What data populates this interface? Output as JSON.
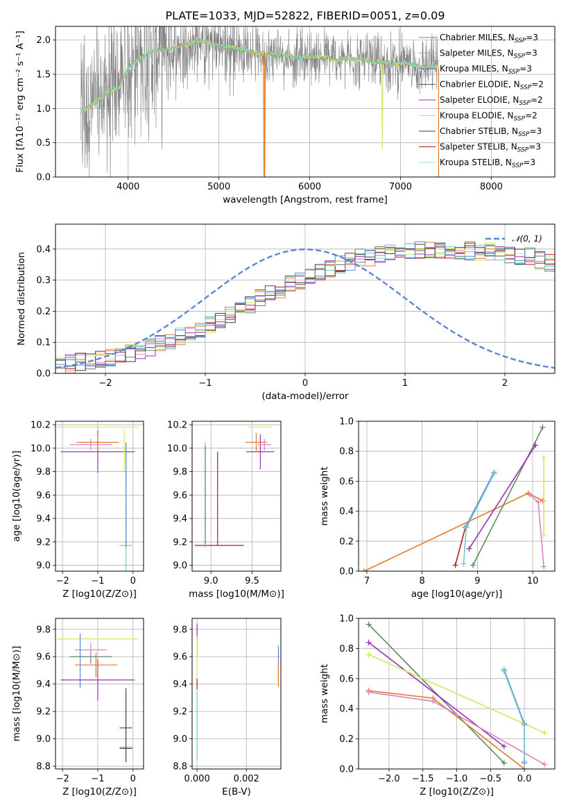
{
  "title": "PLATE=1033, MJD=52822, FIBERID=0051, z=0.09",
  "colors": {
    "Chabrier MILES": "#5b7fd6",
    "Salpeter MILES": "#e889c8",
    "Kroupa MILES": "#7a48b0",
    "Chabrier ELODIE": "#555555",
    "Salpeter ELODIE": "#9a2fb0",
    "Kroupa ELODIE": "#c6e85c",
    "Chabrier STELIB": "#3e3e3e",
    "Salpeter STELIB": "#b01a1a",
    "Kroupa STELIB": "#8fe3e6",
    "observed": "#808080",
    "normal": "#5b86d6",
    "orange": "#e07b28",
    "green": "#5e8a63",
    "pink": "#d884c0",
    "purple": "#9b2fb2",
    "lime": "#cfea5a",
    "teal": "#6ec9cd"
  },
  "chart_data": [
    {
      "id": "spectrum",
      "type": "line",
      "xlabel": "wavelength [Angstrom, rest frame]",
      "ylabel": "Flux [fλ10⁻¹⁷ erg cm⁻² s⁻¹ A⁻¹]",
      "xlim": [
        3200,
        8700
      ],
      "ylim": [
        0,
        2.2
      ],
      "xticks": [
        4000,
        5000,
        6000,
        7000,
        8000
      ],
      "yticks": [
        0.0,
        0.5,
        1.0,
        1.5,
        2.0
      ],
      "legend_position": "top-right",
      "legend": [
        {
          "label": "Chabrier MILES, N",
          "sub": "SSP",
          "tail": "=3",
          "color": "#5b7fd6"
        },
        {
          "label": "Salpeter MILES, N",
          "sub": "SSP",
          "tail": "=3",
          "color": "#e889c8"
        },
        {
          "label": "Kroupa MILES, N",
          "sub": "SSP",
          "tail": "=3",
          "color": "#7a48b0"
        },
        {
          "label": "Chabrier ELODIE, N",
          "sub": "SSP",
          "tail": "=2",
          "color": "#555555"
        },
        {
          "label": "Salpeter ELODIE, N",
          "sub": "SSP",
          "tail": "=2",
          "color": "#9a2fb0"
        },
        {
          "label": "Kroupa ELODIE, N",
          "sub": "SSP",
          "tail": "=2",
          "color": "#c6e85c"
        },
        {
          "label": "Chabrier STELIB, N",
          "sub": "SSP",
          "tail": "=3",
          "color": "#3e3e3e"
        },
        {
          "label": "Salpeter STELIB, N",
          "sub": "SSP",
          "tail": "=3",
          "color": "#b01a1a"
        },
        {
          "label": "Kroupa STELIB, N",
          "sub": "SSP",
          "tail": "=3",
          "color": "#8fe3e6"
        }
      ],
      "model_curve": {
        "x": [
          3480,
          3600,
          3700,
          3800,
          3900,
          4000,
          4100,
          4200,
          4300,
          4400,
          4500,
          4600,
          4700,
          4800,
          4900,
          5000,
          5100,
          5200,
          5300,
          5400,
          5500,
          5600,
          5700,
          5800,
          5900,
          6000,
          6100,
          6200,
          6300,
          6400,
          6500,
          6600,
          6700,
          6800,
          6900,
          7000,
          7100,
          7200,
          7300,
          7400
        ],
        "y": [
          0.95,
          1.05,
          1.15,
          1.25,
          1.3,
          1.6,
          1.7,
          1.8,
          1.85,
          1.85,
          1.88,
          1.92,
          1.95,
          2.0,
          1.95,
          1.92,
          1.9,
          1.88,
          1.85,
          1.82,
          1.8,
          1.78,
          1.8,
          1.75,
          1.74,
          1.76,
          1.75,
          1.74,
          1.7,
          1.73,
          1.72,
          1.7,
          1.68,
          1.68,
          1.65,
          1.66,
          1.65,
          1.62,
          1.6,
          1.62
        ]
      },
      "observed_range": [
        3480,
        7420
      ]
    },
    {
      "id": "residuals",
      "type": "histogram",
      "xlabel": "(data-model)/error",
      "ylabel": "Normed distribution",
      "xlim": [
        -2.5,
        2.5
      ],
      "ylim": [
        0,
        0.48
      ],
      "xticks": [
        -2,
        -1,
        0,
        1,
        2
      ],
      "xtick_labels": [
        "−2",
        "−1",
        "0",
        "1",
        "2"
      ],
      "yticks": [
        0.0,
        0.1,
        0.2,
        0.3,
        0.4
      ],
      "legend_position": "top-right",
      "legend_label": "𝒩(0, 1)",
      "bin_width": 0.1,
      "base": [
        0.025,
        0.03,
        0.035,
        0.04,
        0.045,
        0.05,
        0.06,
        0.065,
        0.075,
        0.085,
        0.095,
        0.105,
        0.12,
        0.13,
        0.145,
        0.16,
        0.175,
        0.19,
        0.2,
        0.22,
        0.24,
        0.255,
        0.27,
        0.285,
        0.3,
        0.31,
        0.325,
        0.34,
        0.35,
        0.36,
        0.37,
        0.375,
        0.38,
        0.385,
        0.39,
        0.395,
        0.395,
        0.4,
        0.4,
        0.395,
        0.395,
        0.395,
        0.39,
        0.39,
        0.39,
        0.385,
        0.38,
        0.375,
        0.365,
        0.355,
        0.345,
        0.33,
        0.32,
        0.305,
        0.29,
        0.275,
        0.26,
        0.245,
        0.23,
        0.215,
        0.2,
        0.185,
        0.17,
        0.155,
        0.14,
        0.125,
        0.115,
        0.1,
        0.09,
        0.08,
        0.07,
        0.065,
        0.06,
        0.055,
        0.05,
        0.045,
        0.04,
        0.035,
        0.035,
        0.03
      ],
      "noise_amplitude": 0.03
    },
    {
      "id": "age-vs-Z",
      "type": "errorbar",
      "xlabel": "Z [log10(Z/Z⊙)]",
      "ylabel": "age [log10(age/yr)]",
      "xlim": [
        -2.2,
        0.3
      ],
      "ylim": [
        8.95,
        10.23
      ],
      "xticks": [
        -2,
        -1,
        0
      ],
      "xtick_labels": [
        "−2",
        "−1",
        "0"
      ],
      "yticks": [
        9.0,
        9.2,
        9.4,
        9.6,
        9.8,
        10.0,
        10.2
      ],
      "points": [
        {
          "x": -1.0,
          "y": 10.18,
          "xerr": 1.15,
          "yerr": 0.0,
          "color": "#cfea5a"
        },
        {
          "x": -1.0,
          "y": 9.97,
          "xerr": 1.05,
          "yerr": 0.18,
          "color": "#9b2fb2"
        },
        {
          "x": -1.0,
          "y": 10.05,
          "xerr": 0.6,
          "yerr": 0.07,
          "color": "#e07b28"
        },
        {
          "x": -1.2,
          "y": 10.03,
          "xerr": 0.6,
          "yerr": 0.05,
          "color": "#d884c0"
        },
        {
          "x": -0.25,
          "y": 9.98,
          "xerr": 0.0,
          "yerr": 0.18,
          "color": "#cfea5a"
        },
        {
          "x": -0.2,
          "y": 9.17,
          "xerr": 0.18,
          "yerr": 0.22,
          "color": "#6ec9cd"
        },
        {
          "x": -0.2,
          "y": 9.6,
          "xerr": 0.0,
          "yerr": 0.45,
          "color": "#5e8a63"
        },
        {
          "x": -0.2,
          "y": 9.6,
          "xerr": 0.0,
          "yerr": 0.42,
          "color": "#5b86d6"
        }
      ]
    },
    {
      "id": "age-vs-mass",
      "type": "errorbar",
      "xlabel": "mass [log10(M/M⊙)]",
      "ylabel": "",
      "xlim": [
        8.77,
        9.85
      ],
      "ylim": [
        8.95,
        10.23
      ],
      "xticks": [
        9.0,
        9.5
      ],
      "xtick_labels": [
        "9.0",
        "9.5"
      ],
      "yticks": [
        9.0,
        9.2,
        9.4,
        9.6,
        9.8,
        10.0,
        10.2
      ],
      "points": [
        {
          "x": 9.6,
          "y": 10.18,
          "xerr": 0.15,
          "yerr": 0.0,
          "color": "#cfea5a"
        },
        {
          "x": 9.6,
          "y": 9.97,
          "xerr": 0.17,
          "yerr": 0.15,
          "color": "#9b2fb2"
        },
        {
          "x": 9.55,
          "y": 10.05,
          "xerr": 0.13,
          "yerr": 0.08,
          "color": "#e07b28"
        },
        {
          "x": 9.65,
          "y": 10.03,
          "xerr": 0.08,
          "yerr": 0.05,
          "color": "#d884c0"
        },
        {
          "x": 9.1,
          "y": 9.17,
          "xerr": 0.3,
          "yerr": 0.0,
          "color": "#b01a1a"
        },
        {
          "x": 9.08,
          "y": 9.57,
          "xerr": 0.0,
          "yerr": 0.4,
          "color": "#b01a1a"
        },
        {
          "x": 8.93,
          "y": 9.6,
          "xerr": 0.0,
          "yerr": 0.45,
          "color": "#6ec9cd"
        },
        {
          "x": 8.93,
          "y": 9.6,
          "xerr": 0.0,
          "yerr": 0.42,
          "color": "#5e8a63"
        }
      ]
    },
    {
      "id": "weight-vs-age",
      "type": "line",
      "xlabel": "age [log10(age/yr)]",
      "ylabel": "mass weight",
      "xlim": [
        6.85,
        10.4
      ],
      "ylim": [
        0,
        1.0
      ],
      "xticks": [
        7,
        8,
        9,
        10
      ],
      "xtick_labels": [
        "7",
        "8",
        "9",
        "10"
      ],
      "yticks": [
        0.0,
        0.2,
        0.4,
        0.6,
        0.8,
        1.0
      ],
      "series": [
        {
          "x": [
            6.95,
            9.92,
            10.18
          ],
          "y": [
            0.0,
            0.52,
            0.47
          ],
          "color": "#e07b28"
        },
        {
          "x": [
            8.92,
            10.18
          ],
          "y": [
            0.04,
            0.96
          ],
          "color": "#5e8a63"
        },
        {
          "x": [
            8.6,
            8.78
          ],
          "y": [
            0.04,
            0.29
          ],
          "color": "#b01a1a"
        },
        {
          "x": [
            8.78,
            9.3
          ],
          "y": [
            0.29,
            0.66
          ],
          "color": "#5b86d6"
        },
        {
          "x": [
            8.8,
            9.3
          ],
          "y": [
            0.29,
            0.65
          ],
          "color": "#6ec9cd"
        },
        {
          "x": [
            8.85,
            10.05
          ],
          "y": [
            0.15,
            0.84
          ],
          "color": "#9b2fb2"
        },
        {
          "x": [
            9.95,
            10.1,
            10.2
          ],
          "y": [
            0.51,
            0.46,
            0.03
          ],
          "color": "#d884c0"
        },
        {
          "x": [
            10.2,
            10.2
          ],
          "y": [
            0.24,
            0.76
          ],
          "color": "#cfea5a"
        },
        {
          "x": [
            8.75,
            8.8
          ],
          "y": [
            0.05,
            0.3
          ],
          "color": "#6ec9cd"
        }
      ]
    },
    {
      "id": "mass-vs-Z",
      "type": "errorbar",
      "xlabel": "Z [log10(Z/Z⊙)]",
      "ylabel": "mass [log10(M/M⊙)]",
      "xlim": [
        -2.2,
        0.3
      ],
      "ylim": [
        8.78,
        9.88
      ],
      "xticks": [
        -2,
        -1,
        0
      ],
      "xtick_labels": [
        "−2",
        "−1",
        "0"
      ],
      "yticks": [
        8.8,
        9.0,
        9.2,
        9.4,
        9.6,
        9.8
      ],
      "points": [
        {
          "x": -1.0,
          "y": 9.73,
          "xerr": 1.15,
          "yerr": 0.0,
          "color": "#cfea5a"
        },
        {
          "x": -1.0,
          "y": 9.43,
          "xerr": 1.05,
          "yerr": 0.15,
          "color": "#9b2fb2"
        },
        {
          "x": -1.05,
          "y": 9.54,
          "xerr": 0.6,
          "yerr": 0.09,
          "color": "#e07b28"
        },
        {
          "x": -1.2,
          "y": 9.6,
          "xerr": 0.6,
          "yerr": 0.05,
          "color": "#5e8a63"
        },
        {
          "x": -1.2,
          "y": 9.65,
          "xerr": 0.45,
          "yerr": 0.05,
          "color": "#d884c0"
        },
        {
          "x": -1.5,
          "y": 9.57,
          "xerr": 0.0,
          "yerr": 0.2,
          "color": "#5b86d6"
        },
        {
          "x": -0.2,
          "y": 9.08,
          "xerr": 0.18,
          "yerr": 0.0,
          "color": "#b01a1a"
        },
        {
          "x": -0.2,
          "y": 8.93,
          "xerr": 0.18,
          "yerr": 0.0,
          "color": "#3e3e3e"
        },
        {
          "x": -0.2,
          "y": 8.94,
          "xerr": 0.18,
          "yerr": 0.0,
          "color": "#6ec9cd"
        },
        {
          "x": -0.2,
          "y": 9.1,
          "xerr": 0.0,
          "yerr": 0.27,
          "color": "#3e3e3e"
        }
      ]
    },
    {
      "id": "mass-vs-EBV",
      "type": "errorbar",
      "xlabel": "E(B-V)",
      "ylabel": "",
      "xlim": [
        -0.0002,
        0.0034
      ],
      "ylim": [
        8.78,
        9.88
      ],
      "xticks": [
        0.0,
        0.002
      ],
      "xtick_labels": [
        "0.000",
        "0.002"
      ],
      "yticks": [
        8.8,
        9.0,
        9.2,
        9.4,
        9.6,
        9.8
      ],
      "points": [
        {
          "x": 0.0,
          "y": 9.72,
          "xerr": 0.0,
          "yerr": 0.12,
          "color": "#9b2fb2"
        },
        {
          "x": 0.0,
          "y": 9.55,
          "xerr": 0.0,
          "yerr": 0.2,
          "color": "#cfea5a"
        },
        {
          "x": 0.0,
          "y": 9.4,
          "xerr": 0.0,
          "yerr": 0.04,
          "color": "#b01a1a"
        },
        {
          "x": 0.0,
          "y": 9.1,
          "xerr": 0.0,
          "yerr": 0.25,
          "color": "#6ec9cd"
        },
        {
          "x": 0.0033,
          "y": 9.55,
          "xerr": 0.0,
          "yerr": 0.13,
          "color": "#5b86d6"
        },
        {
          "x": 0.0033,
          "y": 9.47,
          "xerr": 0.0,
          "yerr": 0.09,
          "color": "#e07b28"
        }
      ]
    },
    {
      "id": "weight-vs-Z",
      "type": "line",
      "xlabel": "Z [log10(Z/Z⊙)]",
      "ylabel": "mass weight",
      "xlim": [
        -2.45,
        0.45
      ],
      "ylim": [
        0,
        1.0
      ],
      "xticks": [
        -2.0,
        -1.5,
        -1.0,
        -0.5,
        0.0
      ],
      "xtick_labels": [
        "−2.0",
        "−1.5",
        "−1.0",
        "−0.5",
        "0.0"
      ],
      "yticks": [
        0.0,
        0.2,
        0.4,
        0.6,
        0.8,
        1.0
      ],
      "series": [
        {
          "x": [
            -2.3,
            -0.3
          ],
          "y": [
            0.96,
            0.04
          ],
          "color": "#5e8a63"
        },
        {
          "x": [
            -2.3,
            -0.3
          ],
          "y": [
            0.84,
            0.15
          ],
          "color": "#9b2fb2"
        },
        {
          "x": [
            -2.3,
            0.3
          ],
          "y": [
            0.76,
            0.24
          ],
          "color": "#cfea5a"
        },
        {
          "x": [
            -2.3,
            -1.35,
            0.0
          ],
          "y": [
            0.52,
            0.47,
            0.0
          ],
          "color": "#e07b28"
        },
        {
          "x": [
            -2.3,
            -1.35,
            0.3
          ],
          "y": [
            0.51,
            0.45,
            0.03
          ],
          "color": "#d884c0"
        },
        {
          "x": [
            -0.3,
            0.0,
            0.0
          ],
          "y": [
            0.66,
            0.3,
            0.04
          ],
          "color": "#5b86d6"
        },
        {
          "x": [
            -0.3,
            0.0,
            0.0
          ],
          "y": [
            0.65,
            0.29,
            0.05
          ],
          "color": "#6ec9cd"
        }
      ]
    }
  ]
}
